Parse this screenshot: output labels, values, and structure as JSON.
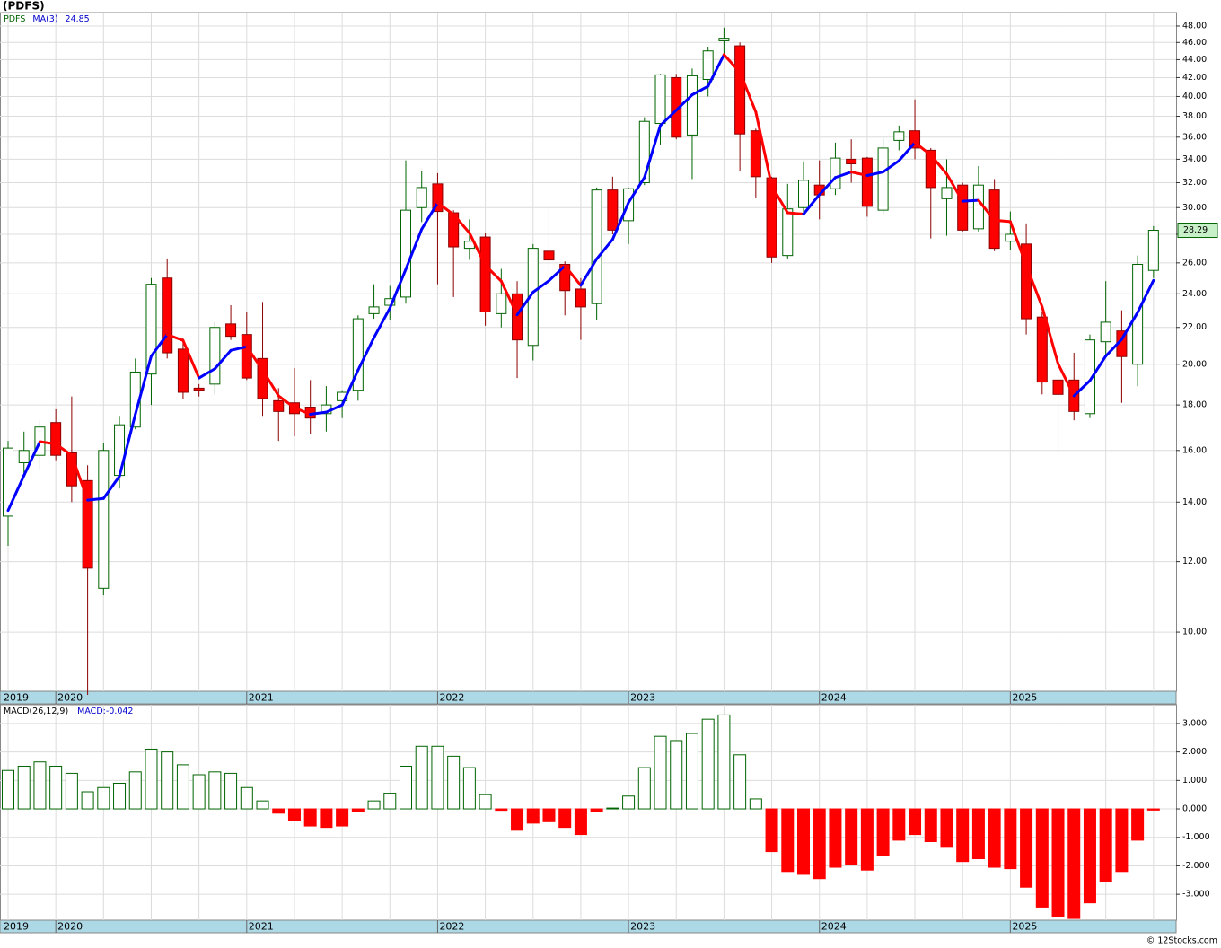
{
  "chart_data": {
    "type": "candlestick",
    "title": "(PDFS)",
    "symbol": "PDFS",
    "ma_name": "MA(3)",
    "log_scale": true,
    "up_color": "#006400",
    "down_color": "#ff0000",
    "ma_up_color": "#0000ff",
    "ma_down_color": "#ff0000",
    "open": [
      13.5,
      15.5,
      15.8,
      17.2,
      15.9,
      14.8,
      11.2,
      15.0,
      17.0,
      19.5,
      25.0,
      20.8,
      18.8,
      19.0,
      22.2,
      21.6,
      20.3,
      18.2,
      18.1,
      17.9,
      17.6,
      18.2,
      18.7,
      22.8,
      23.3,
      23.8,
      30.0,
      31.9,
      29.6,
      27.0,
      27.8,
      22.8,
      24.0,
      21.0,
      26.8,
      25.9,
      24.3,
      23.4,
      31.4,
      29.0,
      32.0,
      37.3,
      42.0,
      36.2,
      41.8,
      46.2,
      45.6,
      36.6,
      32.4,
      26.5,
      30.0,
      31.8,
      31.5,
      34.0,
      34.1,
      29.8,
      35.7,
      36.6,
      34.8,
      30.7,
      31.8,
      28.4,
      31.4,
      27.5,
      27.3,
      22.6,
      19.2,
      19.2,
      17.6,
      21.2,
      21.8,
      20.0,
      25.5
    ],
    "high": [
      16.4,
      16.8,
      17.3,
      17.8,
      18.4,
      15.4,
      16.3,
      17.5,
      20.3,
      25.0,
      26.3,
      21.4,
      19.0,
      22.3,
      23.3,
      22.9,
      23.5,
      18.8,
      19.8,
      19.2,
      18.9,
      18.7,
      22.7,
      24.6,
      24.5,
      33.9,
      33.0,
      32.8,
      29.8,
      29.1,
      28.1,
      25.6,
      24.8,
      27.3,
      30.0,
      26.1,
      25.0,
      31.6,
      32.5,
      31.6,
      37.9,
      42.4,
      42.4,
      43.0,
      45.5,
      47.8,
      46.0,
      36.8,
      32.5,
      31.9,
      33.8,
      33.9,
      35.5,
      35.8,
      34.2,
      35.9,
      37.1,
      39.7,
      35.0,
      34.0,
      32.0,
      33.4,
      32.3,
      29.7,
      28.8,
      22.9,
      19.4,
      20.6,
      21.6,
      24.8,
      23.0,
      26.5,
      28.6
    ],
    "low": [
      12.5,
      15.0,
      15.2,
      15.6,
      14.0,
      8.5,
      11.0,
      14.5,
      16.9,
      18.0,
      20.3,
      18.3,
      18.4,
      18.5,
      21.3,
      19.2,
      17.5,
      16.4,
      16.6,
      16.7,
      16.8,
      17.4,
      18.2,
      22.5,
      22.4,
      23.4,
      28.9,
      24.6,
      23.8,
      26.2,
      22.1,
      22.0,
      19.3,
      20.2,
      24.6,
      22.7,
      21.3,
      22.4,
      28.0,
      27.3,
      31.8,
      35.3,
      35.8,
      32.3,
      40.0,
      44.3,
      33.0,
      30.8,
      26.0,
      26.3,
      29.6,
      29.1,
      31.0,
      32.0,
      29.3,
      29.5,
      34.8,
      34.0,
      27.7,
      27.9,
      28.2,
      28.2,
      26.8,
      26.9,
      21.6,
      18.5,
      15.9,
      17.3,
      17.4,
      20.4,
      18.1,
      18.9,
      25.0
    ],
    "close": [
      16.1,
      16.0,
      17.0,
      15.8,
      14.6,
      11.8,
      16.0,
      17.1,
      19.6,
      24.6,
      20.6,
      18.6,
      18.7,
      22.0,
      21.5,
      19.3,
      18.3,
      17.7,
      17.6,
      17.4,
      18.0,
      18.6,
      22.5,
      23.2,
      23.7,
      29.8,
      31.6,
      29.7,
      27.1,
      27.5,
      22.9,
      24.0,
      21.3,
      27.0,
      26.2,
      24.2,
      23.2,
      31.4,
      28.3,
      31.5,
      37.5,
      42.3,
      36.0,
      42.2,
      45.0,
      46.5,
      36.3,
      32.5,
      26.4,
      29.9,
      32.2,
      31.0,
      34.1,
      33.6,
      30.1,
      35.0,
      36.5,
      35.0,
      31.6,
      31.6,
      28.3,
      31.8,
      27.0,
      28.0,
      22.5,
      19.1,
      18.5,
      17.7,
      21.3,
      22.3,
      20.4,
      25.9,
      28.29
    ],
    "ma": [
      13.7,
      15.0,
      16.37,
      16.27,
      15.8,
      14.07,
      14.13,
      14.97,
      17.57,
      20.43,
      21.6,
      21.27,
      19.3,
      19.77,
      20.73,
      20.93,
      19.7,
      18.43,
      17.87,
      17.57,
      17.67,
      18.0,
      19.7,
      21.43,
      23.13,
      25.57,
      28.37,
      30.37,
      29.47,
      28.1,
      25.83,
      24.8,
      22.73,
      24.1,
      24.83,
      25.8,
      24.53,
      26.27,
      27.63,
      30.4,
      32.43,
      37.1,
      38.6,
      40.17,
      41.07,
      44.57,
      42.6,
      38.43,
      31.73,
      29.6,
      29.5,
      31.03,
      32.43,
      32.9,
      32.6,
      32.9,
      33.87,
      35.5,
      34.37,
      32.73,
      30.5,
      30.57,
      29.03,
      28.93,
      25.83,
      23.2,
      20.03,
      18.43,
      19.17,
      20.43,
      21.33,
      22.87,
      24.85
    ],
    "ylim": [
      8.58,
      49.7
    ],
    "yticks": [
      {
        "value": 10,
        "label": "10.00"
      },
      {
        "value": 12,
        "label": "12.00"
      },
      {
        "value": 14,
        "label": "14.00"
      },
      {
        "value": 16,
        "label": "16.00"
      },
      {
        "value": 18,
        "label": "18.00"
      },
      {
        "value": 20,
        "label": "20.00"
      },
      {
        "value": 22,
        "label": "22.00"
      },
      {
        "value": 24,
        "label": "24.00"
      },
      {
        "value": 26,
        "label": "26.00"
      },
      {
        "value": 28,
        "label": "28.00"
      },
      {
        "value": 30,
        "label": "30.00"
      },
      {
        "value": 32,
        "label": "32.00"
      },
      {
        "value": 34,
        "label": "34.00"
      },
      {
        "value": 36,
        "label": "36.00"
      },
      {
        "value": 38,
        "label": "38.00"
      },
      {
        "value": 40,
        "label": "40.00"
      },
      {
        "value": 42,
        "label": "42.00"
      },
      {
        "value": 44,
        "label": "44.00"
      },
      {
        "value": 46,
        "label": "46.00"
      },
      {
        "value": 48,
        "label": "48.00"
      }
    ],
    "xticks": [
      "2019",
      "2020",
      "2021",
      "2022",
      "2023",
      "2024",
      "2025"
    ],
    "macd": {
      "title": "MACD(26,12,9)",
      "value_prefix": "MACD:",
      "values": [
        1.35,
        1.5,
        1.65,
        1.5,
        1.25,
        0.6,
        0.75,
        0.9,
        1.3,
        2.1,
        2.0,
        1.55,
        1.2,
        1.3,
        1.25,
        0.75,
        0.28,
        -0.15,
        -0.4,
        -0.6,
        -0.65,
        -0.6,
        -0.1,
        0.28,
        0.55,
        1.5,
        2.2,
        2.2,
        1.85,
        1.45,
        0.5,
        -0.05,
        -0.75,
        -0.5,
        -0.45,
        -0.65,
        -0.9,
        -0.1,
        0.03,
        0.45,
        1.45,
        2.55,
        2.4,
        2.65,
        3.15,
        3.3,
        1.9,
        0.35,
        -1.5,
        -2.2,
        -2.3,
        -2.45,
        -2.05,
        -1.95,
        -2.15,
        -1.65,
        -1.1,
        -0.9,
        -1.15,
        -1.35,
        -1.85,
        -1.75,
        -2.05,
        -2.1,
        -2.75,
        -3.45,
        -3.8,
        -3.85,
        -3.3,
        -2.55,
        -2.2,
        -1.1,
        -0.042
      ],
      "ylim": [
        -3.91,
        3.66
      ],
      "yticks": [
        {
          "value": 3,
          "label": "3.000"
        },
        {
          "value": 2,
          "label": "2.000"
        },
        {
          "value": 1,
          "label": "1.000"
        },
        {
          "value": 0,
          "label": "0.000"
        },
        {
          "value": -1,
          "label": "-1.000"
        },
        {
          "value": -2,
          "label": "-2.000"
        },
        {
          "value": -3,
          "label": "-3.000"
        }
      ]
    },
    "copyright": "© 12Stocks.com"
  }
}
